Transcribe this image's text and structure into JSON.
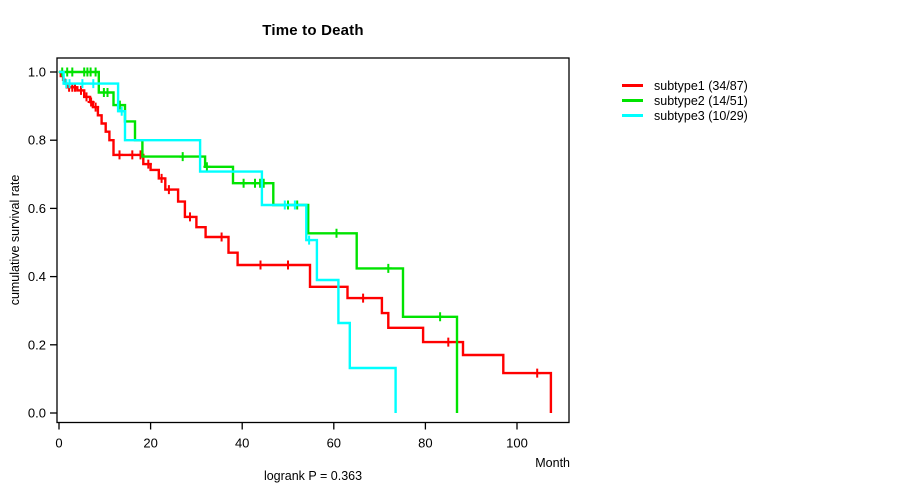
{
  "chart_data": {
    "type": "line",
    "variant": "kaplan-meier-step-plot",
    "title": "Time to Death",
    "xlabel": "Month",
    "ylabel": "cumulative survival rate",
    "footnote": "logrank P = 0.363",
    "grid": false,
    "legend_position": "right-outside",
    "xlim": [
      0,
      112
    ],
    "ylim": [
      0,
      1.04
    ],
    "x_ticks": {
      "values": [
        0,
        20,
        40,
        60,
        80,
        100
      ],
      "labels": [
        "0",
        "20",
        "40",
        "60",
        "80",
        "100"
      ]
    },
    "y_ticks": {
      "values": [
        0.0,
        0.2,
        0.4,
        0.6,
        0.8,
        1.0
      ],
      "labels": [
        "0.0",
        "0.2",
        "0.4",
        "0.6",
        "0.8",
        "1.0"
      ]
    },
    "axis_color": "#000000",
    "series": [
      {
        "name": "subtype1",
        "label": "subtype1 (34/87)",
        "events": 34,
        "n": 87,
        "color": "#FF0000",
        "steps": [
          [
            0,
            1.0
          ],
          [
            0.4,
            0.988
          ],
          [
            0.9,
            0.977
          ],
          [
            1.3,
            0.966
          ],
          [
            1.7,
            0.955
          ],
          [
            4,
            0.946
          ],
          [
            5.5,
            0.927
          ],
          [
            6.8,
            0.912
          ],
          [
            7.4,
            0.897
          ],
          [
            8.5,
            0.873
          ],
          [
            9.3,
            0.849
          ],
          [
            10.2,
            0.825
          ],
          [
            11,
            0.8
          ],
          [
            11.9,
            0.757
          ],
          [
            18.4,
            0.73
          ],
          [
            20,
            0.713
          ],
          [
            21.8,
            0.688
          ],
          [
            23.2,
            0.655
          ],
          [
            26,
            0.62
          ],
          [
            27.5,
            0.575
          ],
          [
            30,
            0.545
          ],
          [
            32,
            0.516
          ],
          [
            37,
            0.47
          ],
          [
            39,
            0.434
          ],
          [
            54.8,
            0.37
          ],
          [
            63,
            0.337
          ],
          [
            70.5,
            0.293
          ],
          [
            71.9,
            0.25
          ],
          [
            79.5,
            0.208
          ],
          [
            88.2,
            0.17
          ],
          [
            97,
            0.117
          ],
          [
            107.4,
            0.0
          ]
        ],
        "censors": [
          [
            2.2,
            0.955
          ],
          [
            2.9,
            0.955
          ],
          [
            3.5,
            0.955
          ],
          [
            4.8,
            0.946
          ],
          [
            6,
            0.927
          ],
          [
            7,
            0.912
          ],
          [
            8,
            0.897
          ],
          [
            13.2,
            0.757
          ],
          [
            16,
            0.757
          ],
          [
            17.8,
            0.757
          ],
          [
            19.5,
            0.73
          ],
          [
            22.4,
            0.688
          ],
          [
            24,
            0.655
          ],
          [
            28.6,
            0.575
          ],
          [
            35.5,
            0.516
          ],
          [
            44,
            0.434
          ],
          [
            50,
            0.434
          ],
          [
            66.4,
            0.337
          ],
          [
            85,
            0.208
          ],
          [
            104.4,
            0.117
          ]
        ]
      },
      {
        "name": "subtype2",
        "label": "subtype2 (14/51)",
        "events": 14,
        "n": 51,
        "color": "#00E300",
        "steps": [
          [
            0,
            1.0
          ],
          [
            8.7,
            0.94
          ],
          [
            11.9,
            0.903
          ],
          [
            14.4,
            0.855
          ],
          [
            16.6,
            0.8
          ],
          [
            18.2,
            0.752
          ],
          [
            31.9,
            0.722
          ],
          [
            38,
            0.674
          ],
          [
            46.8,
            0.61
          ],
          [
            54.4,
            0.527
          ],
          [
            65,
            0.424
          ],
          [
            75.1,
            0.282
          ],
          [
            86.9,
            0.0
          ]
        ],
        "censors": [
          [
            0.7,
            1.0
          ],
          [
            1.8,
            1.0
          ],
          [
            2.9,
            1.0
          ],
          [
            5.5,
            1.0
          ],
          [
            6.2,
            1.0
          ],
          [
            6.9,
            1.0
          ],
          [
            8,
            1.0
          ],
          [
            9.8,
            0.94
          ],
          [
            10.6,
            0.94
          ],
          [
            13.3,
            0.903
          ],
          [
            27,
            0.752
          ],
          [
            32.3,
            0.722
          ],
          [
            40.3,
            0.674
          ],
          [
            42.8,
            0.674
          ],
          [
            43.9,
            0.674
          ],
          [
            44.7,
            0.674
          ],
          [
            50,
            0.61
          ],
          [
            52,
            0.61
          ],
          [
            60.6,
            0.527
          ],
          [
            71.9,
            0.424
          ],
          [
            83.2,
            0.282
          ]
        ]
      },
      {
        "name": "subtype3",
        "label": "subtype3 (10/29)",
        "events": 10,
        "n": 29,
        "color": "#00FFFF",
        "steps": [
          [
            0,
            1.0
          ],
          [
            1,
            0.966
          ],
          [
            12.9,
            0.885
          ],
          [
            14.4,
            0.8
          ],
          [
            30.8,
            0.708
          ],
          [
            44.3,
            0.61
          ],
          [
            54,
            0.507
          ],
          [
            56.3,
            0.39
          ],
          [
            61,
            0.264
          ],
          [
            63.5,
            0.132
          ],
          [
            73.5,
            0.0
          ]
        ],
        "censors": [
          [
            1.6,
            0.966
          ],
          [
            2.3,
            0.966
          ],
          [
            5.1,
            0.966
          ],
          [
            7.5,
            0.966
          ],
          [
            13.7,
            0.885
          ],
          [
            49.3,
            0.61
          ],
          [
            51.5,
            0.61
          ],
          [
            54.6,
            0.507
          ]
        ]
      }
    ]
  }
}
